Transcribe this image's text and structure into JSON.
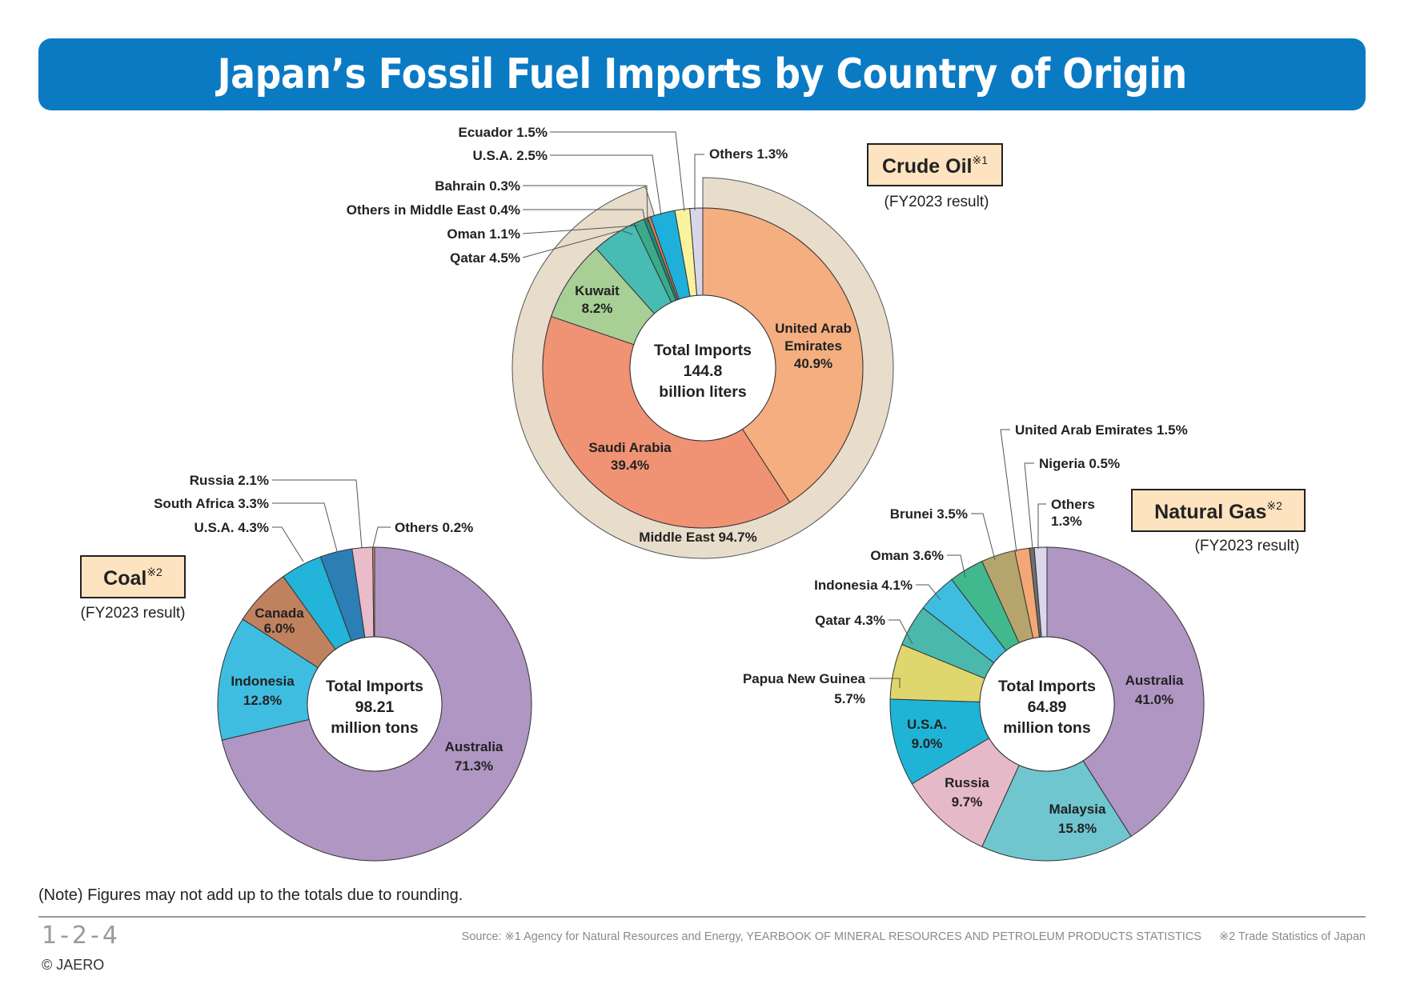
{
  "title": "Japan’s Fossil Fuel Imports by Country of Origin",
  "note": "(Note) Figures may not add up to the totals due to rounding.",
  "page_code": "1-2-4",
  "copyright": "© JAERO",
  "source_1": "Source: ※1 Agency for Natural Resources and Energy, YEARBOOK OF MINERAL RESOURCES AND PETROLEUM PRODUCTS STATISTICS",
  "source_2": "※2 Trade Statistics of Japan",
  "colors": {
    "title_bar": "#0a7ac3",
    "label_box": "#fde3c0"
  },
  "chart_data": [
    {
      "type": "pie",
      "id": "crude",
      "title": "Crude Oil",
      "title_note": "※1",
      "subtitle": "(FY2023 result)",
      "center_text": [
        "Total Imports",
        "144.8",
        "billion liters"
      ],
      "unit": "%",
      "slices": [
        {
          "name": "United Arab Emirates",
          "value": 40.9,
          "color": "#f4ae7f",
          "label": [
            "United Arab",
            "Emirates",
            "40.9%"
          ]
        },
        {
          "name": "Saudi Arabia",
          "value": 39.4,
          "color": "#f09274",
          "label": [
            "Saudi Arabia",
            "39.4%"
          ]
        },
        {
          "name": "Kuwait",
          "value": 8.2,
          "color": "#a8cf96",
          "label": [
            "Kuwait",
            "8.2%"
          ]
        },
        {
          "name": "Qatar",
          "value": 4.5,
          "color": "#48bcb2",
          "label": [
            "Qatar  4.5%"
          ]
        },
        {
          "name": "Oman",
          "value": 1.1,
          "color": "#3aaa8c",
          "label": [
            "Oman    1.1%"
          ]
        },
        {
          "name": "Others in Middle East",
          "value": 0.4,
          "color": "#1f8f7a",
          "label": [
            "Others in Middle East  0.4%"
          ]
        },
        {
          "name": "Bahrain",
          "value": 0.3,
          "color": "#e57b58",
          "label": [
            "Bahrain  0.3%"
          ]
        },
        {
          "name": "U.S.A.",
          "value": 2.5,
          "color": "#1eb0da",
          "label": [
            "U.S.A.  2.5%"
          ]
        },
        {
          "name": "Ecuador",
          "value": 1.5,
          "color": "#f9f39e",
          "label": [
            "Ecuador  1.5%"
          ]
        },
        {
          "name": "Others",
          "value": 1.3,
          "color": "#dad6ea",
          "label": [
            "Others 1.3%"
          ]
        }
      ],
      "group": {
        "name": "Middle East",
        "value": 94.7,
        "label": "Middle East 94.7%",
        "color": "#e8dccb"
      }
    },
    {
      "type": "pie",
      "id": "coal",
      "title": "Coal",
      "title_note": "※2",
      "subtitle": "(FY2023 result)",
      "center_text": [
        "Total Imports",
        "98.21",
        "million tons"
      ],
      "unit": "%",
      "slices": [
        {
          "name": "Australia",
          "value": 71.3,
          "color": "#b096c2",
          "label": [
            "Australia",
            "71.3%"
          ]
        },
        {
          "name": "Indonesia",
          "value": 12.8,
          "color": "#3fbde1",
          "label": [
            "Indonesia",
            "12.8%"
          ]
        },
        {
          "name": "Canada",
          "value": 6.0,
          "color": "#c0825e",
          "label": [
            "Canada",
            "6.0%"
          ]
        },
        {
          "name": "U.S.A.",
          "value": 4.3,
          "color": "#22b4d9",
          "label": [
            "U.S.A. 4.3%"
          ]
        },
        {
          "name": "South Africa",
          "value": 3.3,
          "color": "#2c7fb4",
          "label": [
            "South Africa 3.3%"
          ]
        },
        {
          "name": "Russia",
          "value": 2.1,
          "color": "#e9bccb",
          "label": [
            "Russia 2.1%"
          ]
        },
        {
          "name": "Others",
          "value": 0.2,
          "color": "#e98a6e",
          "label": [
            "Others 0.2%"
          ]
        }
      ]
    },
    {
      "type": "pie",
      "id": "gas",
      "title": "Natural Gas",
      "title_note": "※2",
      "subtitle": "(FY2023 result)",
      "center_text": [
        "Total Imports",
        "64.89",
        "million tons"
      ],
      "unit": "%",
      "slices": [
        {
          "name": "Australia",
          "value": 41.0,
          "color": "#b096c2",
          "label": [
            "Australia",
            "41.0%"
          ]
        },
        {
          "name": "Malaysia",
          "value": 15.8,
          "color": "#6fc6cf",
          "label": [
            "Malaysia",
            "15.8%"
          ]
        },
        {
          "name": "Russia",
          "value": 9.7,
          "color": "#e6b9c9",
          "label": [
            "Russia",
            "9.7%"
          ]
        },
        {
          "name": "U.S.A.",
          "value": 9.0,
          "color": "#1fb4d6",
          "label": [
            "U.S.A.",
            "9.0%"
          ]
        },
        {
          "name": "Papua New Guinea",
          "value": 5.7,
          "color": "#e0d66e",
          "label": [
            "Papua New Guinea",
            "5.7%"
          ]
        },
        {
          "name": "Qatar",
          "value": 4.3,
          "color": "#4ab9ac",
          "label": [
            "Qatar 4.3%"
          ]
        },
        {
          "name": "Indonesia",
          "value": 4.1,
          "color": "#3fbde1",
          "label": [
            "Indonesia 4.1%"
          ]
        },
        {
          "name": "Oman",
          "value": 3.6,
          "color": "#42b88e",
          "label": [
            "Oman 3.6%"
          ]
        },
        {
          "name": "Brunei",
          "value": 3.5,
          "color": "#b6a46d",
          "label": [
            "Brunei 3.5%"
          ]
        },
        {
          "name": "United Arab Emirates",
          "value": 1.5,
          "color": "#f3a776",
          "label": [
            "United Arab Emirates  1.5%"
          ]
        },
        {
          "name": "Nigeria",
          "value": 0.5,
          "color": "#6e6e6e",
          "label": [
            "Nigeria 0.5%"
          ]
        },
        {
          "name": "Others",
          "value": 1.3,
          "color": "#dcd6ea",
          "label": [
            "Others",
            "1.3%"
          ]
        }
      ]
    }
  ]
}
